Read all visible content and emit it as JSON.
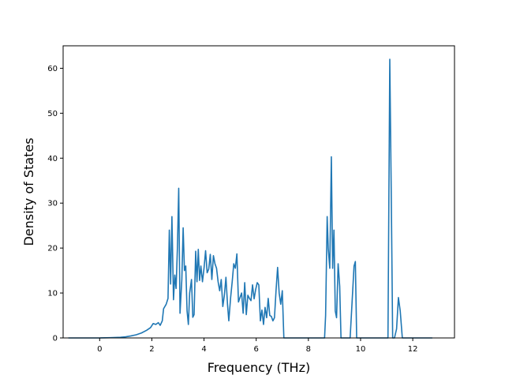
{
  "chart_data": {
    "type": "line",
    "title": "",
    "xlabel": "Frequency (THz)",
    "ylabel": "Density of States",
    "xlim": [
      -1.4,
      13.6
    ],
    "ylim": [
      0,
      65
    ],
    "xticks": [
      0,
      2,
      4,
      6,
      8,
      10,
      12
    ],
    "yticks": [
      0,
      10,
      20,
      30,
      40,
      50,
      60
    ],
    "grid": false,
    "legend": "none",
    "series": [
      {
        "name": "",
        "color": "#1f77b4",
        "points": [
          [
            -1.2,
            0
          ],
          [
            -0.8,
            0
          ],
          [
            -0.4,
            0
          ],
          [
            0,
            0
          ],
          [
            0.4,
            0.05
          ],
          [
            0.8,
            0.15
          ],
          [
            1.0,
            0.25
          ],
          [
            1.2,
            0.45
          ],
          [
            1.4,
            0.7
          ],
          [
            1.6,
            1.1
          ],
          [
            1.8,
            1.7
          ],
          [
            1.95,
            2.3
          ],
          [
            2.05,
            3.2
          ],
          [
            2.15,
            3.0
          ],
          [
            2.25,
            3.4
          ],
          [
            2.32,
            2.8
          ],
          [
            2.4,
            3.8
          ],
          [
            2.45,
            6.5
          ],
          [
            2.55,
            7.5
          ],
          [
            2.62,
            8.8
          ],
          [
            2.67,
            24
          ],
          [
            2.72,
            12
          ],
          [
            2.77,
            27
          ],
          [
            2.83,
            8.5
          ],
          [
            2.88,
            14
          ],
          [
            2.93,
            11
          ],
          [
            2.98,
            20
          ],
          [
            3.03,
            33.3
          ],
          [
            3.08,
            5.5
          ],
          [
            3.15,
            13
          ],
          [
            3.2,
            24.5
          ],
          [
            3.25,
            15
          ],
          [
            3.3,
            16
          ],
          [
            3.35,
            6
          ],
          [
            3.4,
            3
          ],
          [
            3.45,
            10
          ],
          [
            3.52,
            13
          ],
          [
            3.57,
            4.6
          ],
          [
            3.62,
            5.2
          ],
          [
            3.68,
            19.3
          ],
          [
            3.73,
            12.5
          ],
          [
            3.78,
            19.7
          ],
          [
            3.83,
            12.8
          ],
          [
            3.88,
            16
          ],
          [
            3.94,
            12.5
          ],
          [
            4.0,
            15.5
          ],
          [
            4.06,
            19.4
          ],
          [
            4.12,
            14.5
          ],
          [
            4.18,
            15.3
          ],
          [
            4.24,
            18.6
          ],
          [
            4.3,
            13
          ],
          [
            4.36,
            18.3
          ],
          [
            4.42,
            16.5
          ],
          [
            4.48,
            15.5
          ],
          [
            4.54,
            12.5
          ],
          [
            4.6,
            10.5
          ],
          [
            4.66,
            13
          ],
          [
            4.72,
            7
          ],
          [
            4.78,
            9.5
          ],
          [
            4.84,
            13.5
          ],
          [
            4.9,
            7.5
          ],
          [
            4.95,
            3.8
          ],
          [
            5.02,
            9
          ],
          [
            5.08,
            12.5
          ],
          [
            5.14,
            16.5
          ],
          [
            5.2,
            15.5
          ],
          [
            5.26,
            18.7
          ],
          [
            5.32,
            8
          ],
          [
            5.38,
            9
          ],
          [
            5.44,
            10
          ],
          [
            5.5,
            5.5
          ],
          [
            5.56,
            12.3
          ],
          [
            5.62,
            5.2
          ],
          [
            5.68,
            9.5
          ],
          [
            5.74,
            8.8
          ],
          [
            5.8,
            8.3
          ],
          [
            5.86,
            11.8
          ],
          [
            5.92,
            8.7
          ],
          [
            5.98,
            10.8
          ],
          [
            6.04,
            12.3
          ],
          [
            6.1,
            11.8
          ],
          [
            6.16,
            3.8
          ],
          [
            6.22,
            6.2
          ],
          [
            6.28,
            3
          ],
          [
            6.34,
            6.8
          ],
          [
            6.4,
            4.5
          ],
          [
            6.46,
            8.8
          ],
          [
            6.52,
            5
          ],
          [
            6.58,
            4.8
          ],
          [
            6.64,
            3.8
          ],
          [
            6.7,
            4.5
          ],
          [
            6.76,
            10.5
          ],
          [
            6.82,
            15.7
          ],
          [
            6.88,
            10
          ],
          [
            6.94,
            7.5
          ],
          [
            7.0,
            10.5
          ],
          [
            7.06,
            0
          ],
          [
            7.4,
            0
          ],
          [
            7.8,
            0
          ],
          [
            8.2,
            0
          ],
          [
            8.62,
            0
          ],
          [
            8.66,
            5
          ],
          [
            8.72,
            27
          ],
          [
            8.76,
            20
          ],
          [
            8.82,
            15.5
          ],
          [
            8.88,
            40.3
          ],
          [
            8.93,
            15.5
          ],
          [
            8.98,
            24
          ],
          [
            9.03,
            6
          ],
          [
            9.08,
            4.5
          ],
          [
            9.14,
            16.5
          ],
          [
            9.2,
            11.5
          ],
          [
            9.25,
            0
          ],
          [
            9.6,
            0
          ],
          [
            9.75,
            16
          ],
          [
            9.8,
            17
          ],
          [
            9.85,
            0
          ],
          [
            10.2,
            0
          ],
          [
            10.6,
            0
          ],
          [
            11.05,
            0
          ],
          [
            11.12,
            62
          ],
          [
            11.18,
            30
          ],
          [
            11.23,
            0
          ],
          [
            11.3,
            0
          ],
          [
            11.38,
            2
          ],
          [
            11.45,
            9
          ],
          [
            11.52,
            6
          ],
          [
            11.6,
            0
          ],
          [
            11.8,
            0
          ],
          [
            12.1,
            0
          ],
          [
            12.4,
            0
          ],
          [
            12.75,
            0
          ]
        ]
      }
    ]
  }
}
